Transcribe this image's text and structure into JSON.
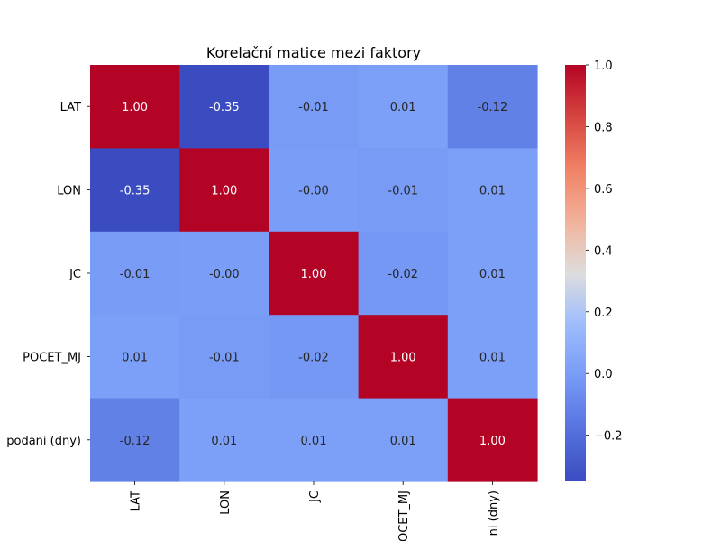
{
  "chart_data": {
    "type": "heatmap",
    "title": "Korelační matice mezi faktory",
    "row_labels": [
      "LAT",
      "LON",
      "JC",
      "POCET_MJ",
      "podani (dny)"
    ],
    "col_labels": [
      "LAT",
      "LON",
      "JC",
      "POCET_MJ",
      "ni (dny)"
    ],
    "values": [
      [
        1.0,
        -0.35,
        -0.01,
        0.01,
        -0.12
      ],
      [
        -0.35,
        1.0,
        -0.0,
        -0.01,
        0.01
      ],
      [
        -0.01,
        -0.0,
        1.0,
        -0.02,
        0.01
      ],
      [
        0.01,
        -0.01,
        -0.02,
        1.0,
        0.01
      ],
      [
        -0.12,
        0.01,
        0.01,
        0.01,
        1.0
      ]
    ],
    "annotations": [
      [
        "1.00",
        "-0.35",
        "-0.01",
        "0.01",
        "-0.12"
      ],
      [
        "-0.35",
        "1.00",
        "-0.00",
        "-0.01",
        "0.01"
      ],
      [
        "-0.01",
        "-0.00",
        "1.00",
        "-0.02",
        "0.01"
      ],
      [
        "0.01",
        "-0.01",
        "-0.02",
        "1.00",
        "0.01"
      ],
      [
        "-0.12",
        "0.01",
        "0.01",
        "0.01",
        "1.00"
      ]
    ],
    "colormap": "coolwarm",
    "vmin": -0.35,
    "vmax": 1.0,
    "colorbar_ticks": [
      1.0,
      0.8,
      0.6,
      0.4,
      0.2,
      0.0,
      -0.2
    ],
    "colorbar_tick_labels": [
      "1.0",
      "0.8",
      "0.6",
      "0.4",
      "0.2",
      "0.0",
      "−0.2"
    ],
    "xlabel": "",
    "ylabel": ""
  }
}
